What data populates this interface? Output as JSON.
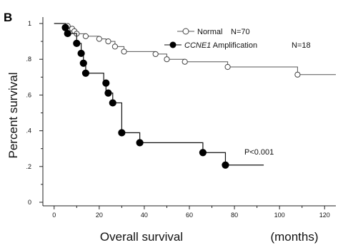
{
  "chart_data": {
    "type": "line",
    "panel_label": "B",
    "xlabel": "Overall survival",
    "xunit": "(months)",
    "ylabel": "Percent survival",
    "xlim": [
      -5,
      125
    ],
    "ylim": [
      -0.02,
      1.02
    ],
    "xticks": [
      0,
      20,
      40,
      60,
      80,
      100,
      120
    ],
    "xtick_labels": [
      "0",
      "20",
      "40",
      "60",
      "80",
      "100",
      "120"
    ],
    "yticks": [
      0,
      0.2,
      0.4,
      0.6,
      0.8,
      1.0
    ],
    "ytick_labels": [
      "0",
      ".2",
      ".4",
      ".6",
      ".8",
      "1"
    ],
    "grid": false,
    "legend_position": "top-right",
    "annotation": "P<0.001",
    "series": [
      {
        "name": "Normal",
        "n_label": "N=70",
        "marker": "open-circle",
        "steps": [
          [
            0,
            1.0
          ],
          [
            5,
            0.986
          ],
          [
            7,
            0.971
          ],
          [
            8,
            0.957
          ],
          [
            10,
            0.943
          ],
          [
            14,
            0.929
          ],
          [
            20,
            0.914
          ],
          [
            23,
            0.9
          ],
          [
            27,
            0.871
          ],
          [
            31,
            0.843
          ],
          [
            45,
            0.829
          ],
          [
            50,
            0.8
          ],
          [
            58,
            0.786
          ],
          [
            77,
            0.757
          ],
          [
            108,
            0.714
          ],
          [
            125,
            0.714
          ]
        ],
        "markers_at": [
          [
            6,
            0.986
          ],
          [
            8,
            0.971
          ],
          [
            9,
            0.957
          ],
          [
            10,
            0.943
          ],
          [
            14,
            0.929
          ],
          [
            20,
            0.914
          ],
          [
            24,
            0.9
          ],
          [
            27,
            0.871
          ],
          [
            31,
            0.843
          ],
          [
            45,
            0.829
          ],
          [
            50,
            0.8
          ],
          [
            58,
            0.786
          ],
          [
            77,
            0.757
          ],
          [
            108,
            0.714
          ]
        ]
      },
      {
        "name": "CCNE1 Amplification",
        "name_italic_part": "CCNE1",
        "name_rest": " Amplification",
        "n_label": "N=18",
        "marker": "filled-circle",
        "steps": [
          [
            0,
            1.0
          ],
          [
            5,
            0.944
          ],
          [
            10,
            0.889
          ],
          [
            12,
            0.833
          ],
          [
            13,
            0.778
          ],
          [
            14,
            0.722
          ],
          [
            22,
            0.667
          ],
          [
            23,
            0.611
          ],
          [
            26,
            0.556
          ],
          [
            30,
            0.389
          ],
          [
            38,
            0.333
          ],
          [
            66,
            0.278
          ],
          [
            76,
            0.208
          ],
          [
            93,
            0.208
          ]
        ],
        "markers_at": [
          [
            5,
            0.977
          ],
          [
            6,
            0.944
          ],
          [
            10,
            0.889
          ],
          [
            12,
            0.833
          ],
          [
            13,
            0.778
          ],
          [
            14,
            0.722
          ],
          [
            23,
            0.667
          ],
          [
            24,
            0.611
          ],
          [
            26,
            0.556
          ],
          [
            30,
            0.389
          ],
          [
            38,
            0.333
          ],
          [
            66,
            0.278
          ],
          [
            76,
            0.208
          ]
        ]
      }
    ]
  }
}
